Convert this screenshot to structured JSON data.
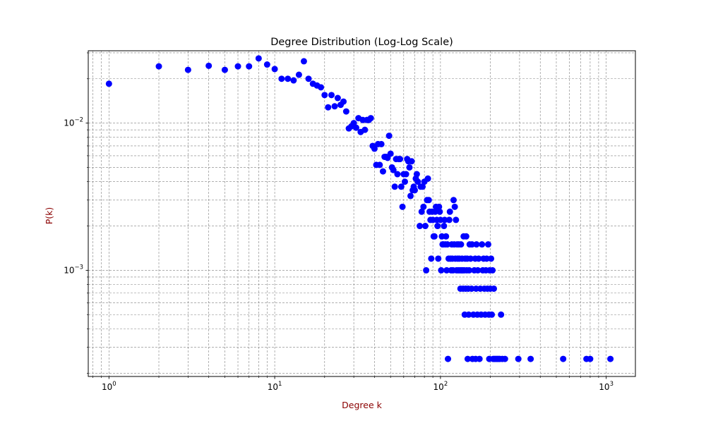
{
  "chart_data": {
    "type": "scatter",
    "title": "Degree Distribution (Log-Log Scale)",
    "xlabel": "Degree k",
    "ylabel": "P(k)",
    "xscale": "log",
    "yscale": "log",
    "xlim": [
      0.75,
      1500
    ],
    "ylim": [
      0.00019,
      0.031
    ],
    "xticks": [
      {
        "value": 1,
        "base": "10",
        "exp": "0"
      },
      {
        "value": 10,
        "base": "10",
        "exp": "1"
      },
      {
        "value": 100,
        "base": "10",
        "exp": "2"
      },
      {
        "value": 1000,
        "base": "10",
        "exp": "3"
      }
    ],
    "yticks": [
      {
        "value": 0.001,
        "base": "10",
        "exp": "−3"
      },
      {
        "value": 0.01,
        "base": "10",
        "exp": "−2"
      }
    ],
    "grid": "both (major and minor), dashed gray",
    "marker_color": "#0000ff",
    "label_color": "#8b0000",
    "grid_color": "#808080",
    "points": [
      [
        1,
        0.0185
      ],
      [
        2,
        0.0243
      ],
      [
        3,
        0.023
      ],
      [
        4,
        0.0245
      ],
      [
        5,
        0.023
      ],
      [
        6,
        0.0243
      ],
      [
        7,
        0.0243
      ],
      [
        8,
        0.0275
      ],
      [
        9,
        0.025
      ],
      [
        10,
        0.0233
      ],
      [
        11,
        0.02
      ],
      [
        12,
        0.02
      ],
      [
        13,
        0.0195
      ],
      [
        14,
        0.0213
      ],
      [
        15,
        0.0263
      ],
      [
        16,
        0.02
      ],
      [
        17,
        0.0185
      ],
      [
        18,
        0.018
      ],
      [
        19,
        0.0175
      ],
      [
        20,
        0.0155
      ],
      [
        21,
        0.0128
      ],
      [
        22,
        0.0155
      ],
      [
        23,
        0.013
      ],
      [
        24,
        0.0148
      ],
      [
        25,
        0.0133
      ],
      [
        26,
        0.014
      ],
      [
        27,
        0.012
      ],
      [
        28,
        0.0092
      ],
      [
        29,
        0.0095
      ],
      [
        30,
        0.01
      ],
      [
        31,
        0.0093
      ],
      [
        32,
        0.0108
      ],
      [
        33,
        0.0087
      ],
      [
        34,
        0.0105
      ],
      [
        35,
        0.009
      ],
      [
        36,
        0.0105
      ],
      [
        37,
        0.0105
      ],
      [
        38,
        0.0108
      ],
      [
        39,
        0.007
      ],
      [
        40,
        0.0067
      ],
      [
        41,
        0.0052
      ],
      [
        42,
        0.0072
      ],
      [
        43,
        0.0052
      ],
      [
        44,
        0.0072
      ],
      [
        45,
        0.0047
      ],
      [
        46,
        0.0059
      ],
      [
        47,
        0.0059
      ],
      [
        48,
        0.0058
      ],
      [
        49,
        0.0082
      ],
      [
        50,
        0.0062
      ],
      [
        51,
        0.005
      ],
      [
        52,
        0.0048
      ],
      [
        53,
        0.0037
      ],
      [
        54,
        0.0057
      ],
      [
        55,
        0.0045
      ],
      [
        56,
        0.0057
      ],
      [
        57,
        0.0057
      ],
      [
        58,
        0.0037
      ],
      [
        59,
        0.0027
      ],
      [
        60,
        0.0045
      ],
      [
        61,
        0.004
      ],
      [
        62,
        0.0045
      ],
      [
        63,
        0.0057
      ],
      [
        64,
        0.0055
      ],
      [
        65,
        0.005
      ],
      [
        66,
        0.0032
      ],
      [
        67,
        0.0055
      ],
      [
        68,
        0.0035
      ],
      [
        69,
        0.0037
      ],
      [
        70,
        0.0035
      ],
      [
        71,
        0.0042
      ],
      [
        72,
        0.0045
      ],
      [
        73,
        0.004
      ],
      [
        75,
        0.002
      ],
      [
        76,
        0.0037
      ],
      [
        77,
        0.0025
      ],
      [
        78,
        0.0037
      ],
      [
        79,
        0.0027
      ],
      [
        80,
        0.004
      ],
      [
        81,
        0.002
      ],
      [
        82,
        0.001
      ],
      [
        83,
        0.003
      ],
      [
        84,
        0.0042
      ],
      [
        85,
        0.003
      ],
      [
        86,
        0.0025
      ],
      [
        87,
        0.0022
      ],
      [
        88,
        0.0012
      ],
      [
        89,
        0.0025
      ],
      [
        90,
        0.0022
      ],
      [
        91,
        0.0017
      ],
      [
        92,
        0.0017
      ],
      [
        93,
        0.0025
      ],
      [
        94,
        0.0027
      ],
      [
        95,
        0.0022
      ],
      [
        96,
        0.002
      ],
      [
        97,
        0.0012
      ],
      [
        98,
        0.0027
      ],
      [
        99,
        0.0025
      ],
      [
        100,
        0.0022
      ],
      [
        101,
        0.001
      ],
      [
        102,
        0.0017
      ],
      [
        103,
        0.0015
      ],
      [
        104,
        0.0015
      ],
      [
        105,
        0.002
      ],
      [
        106,
        0.0022
      ],
      [
        107,
        0.0015
      ],
      [
        108,
        0.0017
      ],
      [
        109,
        0.001
      ],
      [
        110,
        0.0015
      ],
      [
        111,
        0.00025
      ],
      [
        112,
        0.0012
      ],
      [
        113,
        0.0022
      ],
      [
        114,
        0.0025
      ],
      [
        115,
        0.0012
      ],
      [
        116,
        0.001
      ],
      [
        117,
        0.0015
      ],
      [
        118,
        0.0012
      ],
      [
        119,
        0.001
      ],
      [
        120,
        0.003
      ],
      [
        121,
        0.0015
      ],
      [
        122,
        0.0027
      ],
      [
        123,
        0.0012
      ],
      [
        124,
        0.0022
      ],
      [
        125,
        0.001
      ],
      [
        126,
        0.0015
      ],
      [
        127,
        0.0012
      ],
      [
        128,
        0.001
      ],
      [
        129,
        0.0015
      ],
      [
        130,
        0.0012
      ],
      [
        131,
        0.001
      ],
      [
        132,
        0.00075
      ],
      [
        133,
        0.0015
      ],
      [
        134,
        0.001
      ],
      [
        135,
        0.0012
      ],
      [
        136,
        0.001
      ],
      [
        137,
        0.00075
      ],
      [
        138,
        0.0017
      ],
      [
        139,
        0.001
      ],
      [
        140,
        0.0005
      ],
      [
        141,
        0.0012
      ],
      [
        142,
        0.00075
      ],
      [
        143,
        0.0017
      ],
      [
        144,
        0.001
      ],
      [
        145,
        0.0012
      ],
      [
        146,
        0.00025
      ],
      [
        147,
        0.00075
      ],
      [
        148,
        0.0005
      ],
      [
        149,
        0.001
      ],
      [
        150,
        0.0015
      ],
      [
        152,
        0.0012
      ],
      [
        154,
        0.00075
      ],
      [
        155,
        0.0015
      ],
      [
        156,
        0.00025
      ],
      [
        158,
        0.0005
      ],
      [
        160,
        0.001
      ],
      [
        162,
        0.0012
      ],
      [
        163,
        0.00025
      ],
      [
        164,
        0.00075
      ],
      [
        165,
        0.0015
      ],
      [
        167,
        0.0005
      ],
      [
        168,
        0.001
      ],
      [
        170,
        0.0012
      ],
      [
        172,
        0.00025
      ],
      [
        174,
        0.00075
      ],
      [
        176,
        0.0005
      ],
      [
        178,
        0.0015
      ],
      [
        180,
        0.001
      ],
      [
        182,
        0.0012
      ],
      [
        184,
        0.00075
      ],
      [
        186,
        0.0005
      ],
      [
        188,
        0.001
      ],
      [
        190,
        0.0012
      ],
      [
        192,
        0.00075
      ],
      [
        194,
        0.0015
      ],
      [
        196,
        0.0005
      ],
      [
        197,
        0.00025
      ],
      [
        198,
        0.001
      ],
      [
        200,
        0.00075
      ],
      [
        202,
        0.0012
      ],
      [
        204,
        0.0005
      ],
      [
        206,
        0.001
      ],
      [
        208,
        0.00025
      ],
      [
        210,
        0.00075
      ],
      [
        212,
        0.00025
      ],
      [
        216,
        0.00025
      ],
      [
        220,
        0.00025
      ],
      [
        224,
        0.00025
      ],
      [
        228,
        0.00025
      ],
      [
        232,
        0.0005
      ],
      [
        236,
        0.00025
      ],
      [
        245,
        0.00025
      ],
      [
        295,
        0.00025
      ],
      [
        350,
        0.00025
      ],
      [
        550,
        0.00025
      ],
      [
        760,
        0.00025
      ],
      [
        800,
        0.00025
      ],
      [
        1060,
        0.00025
      ]
    ]
  }
}
